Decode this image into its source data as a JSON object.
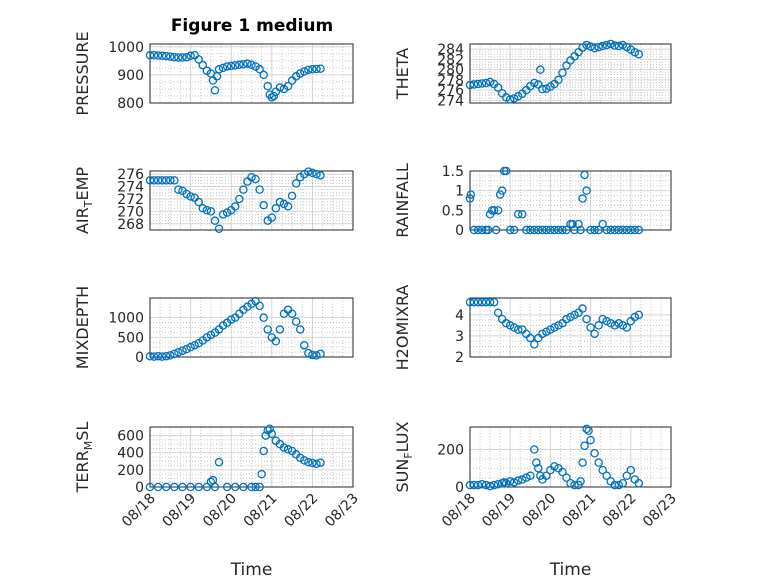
{
  "figure": {
    "title": "Figure 1 medium",
    "xlabel": "Time",
    "xticks": [
      "08/18",
      "08/19",
      "08/20",
      "08/21",
      "08/22",
      "08/23"
    ]
  },
  "colors": {
    "marker": "#0072bd",
    "axis": "#262626",
    "grid": "#d4d4d4"
  },
  "chart_data": [
    {
      "type": "scatter",
      "ylabel": "PRESSURE",
      "yticks": [
        "800",
        "900",
        "1000"
      ],
      "ylim": [
        800,
        1010
      ],
      "xlim": [
        0,
        5
      ],
      "grid": true,
      "x": [
        0.0,
        0.1,
        0.2,
        0.3,
        0.4,
        0.5,
        0.6,
        0.7,
        0.8,
        0.9,
        1.0,
        1.1,
        1.2,
        1.3,
        1.4,
        1.5,
        1.55,
        1.6,
        1.65,
        1.7,
        1.8,
        1.9,
        2.0,
        2.1,
        2.2,
        2.3,
        2.4,
        2.5,
        2.6,
        2.7,
        2.8,
        2.9,
        2.95,
        3.0,
        3.05,
        3.1,
        3.2,
        3.3,
        3.4,
        3.5,
        3.6,
        3.7,
        3.8,
        3.9,
        4.0,
        4.1,
        4.2
      ],
      "y": [
        970,
        970,
        969,
        968,
        967,
        965,
        963,
        962,
        962,
        963,
        968,
        970,
        955,
        935,
        915,
        905,
        880,
        845,
        895,
        920,
        925,
        930,
        932,
        934,
        936,
        938,
        940,
        936,
        930,
        920,
        900,
        860,
        830,
        820,
        825,
        840,
        855,
        850,
        860,
        880,
        895,
        905,
        912,
        918,
        920,
        921,
        922
      ]
    },
    {
      "type": "scatter",
      "ylabel": "THETA",
      "yticks": [
        "274",
        "276",
        "278",
        "280",
        "282",
        "284"
      ],
      "ylim": [
        273.5,
        285
      ],
      "xlim": [
        0,
        5
      ],
      "grid": true,
      "x": [
        0.0,
        0.1,
        0.2,
        0.3,
        0.4,
        0.5,
        0.6,
        0.7,
        0.8,
        0.9,
        1.0,
        1.1,
        1.2,
        1.3,
        1.4,
        1.5,
        1.6,
        1.7,
        1.75,
        1.8,
        1.9,
        2.0,
        2.1,
        2.2,
        2.3,
        2.4,
        2.5,
        2.6,
        2.7,
        2.8,
        2.9,
        3.0,
        3.1,
        3.2,
        3.3,
        3.4,
        3.5,
        3.6,
        3.7,
        3.8,
        3.9,
        4.0,
        4.1,
        4.2
      ],
      "y": [
        277,
        277.1,
        277.2,
        277.3,
        277.4,
        277.6,
        277.2,
        276.5,
        275.4,
        274.6,
        274.2,
        274.4,
        274.8,
        275.3,
        276,
        276.8,
        277.4,
        277.1,
        280,
        276.2,
        276.3,
        276.7,
        277.2,
        278,
        279.4,
        280.8,
        281.8,
        282.6,
        283.4,
        284.3,
        284.8,
        284.5,
        284.2,
        284.4,
        284.6,
        284.8,
        285,
        284.7,
        284.6,
        284.8,
        284.4,
        283.9,
        283.4,
        283
      ]
    },
    {
      "type": "scatter",
      "ylabel": "AIR_TEMP",
      "yticks": [
        "268",
        "270",
        "272",
        "274",
        "276"
      ],
      "ylim": [
        267,
        276.5
      ],
      "xlim": [
        0,
        5
      ],
      "grid": true,
      "x": [
        0.0,
        0.1,
        0.2,
        0.3,
        0.4,
        0.5,
        0.6,
        0.7,
        0.8,
        0.9,
        1.0,
        1.1,
        1.2,
        1.3,
        1.4,
        1.5,
        1.6,
        1.7,
        1.8,
        1.9,
        2.0,
        2.1,
        2.2,
        2.3,
        2.4,
        2.5,
        2.6,
        2.7,
        2.8,
        2.9,
        3.0,
        3.1,
        3.2,
        3.3,
        3.4,
        3.5,
        3.6,
        3.7,
        3.8,
        3.9,
        4.0,
        4.1,
        4.2
      ],
      "y": [
        275,
        275,
        275,
        275,
        275,
        275,
        275,
        273.5,
        273.3,
        272.8,
        272.4,
        272.2,
        271.5,
        270.5,
        270.2,
        270,
        268.5,
        267.2,
        269.5,
        269.8,
        270.2,
        270.8,
        272,
        273.5,
        274.8,
        275.5,
        275.2,
        273.5,
        271,
        268.5,
        269,
        270.5,
        271.5,
        271.2,
        270.8,
        272.5,
        274.5,
        275.5,
        276,
        276.4,
        276.2,
        276,
        275.8
      ]
    },
    {
      "type": "scatter",
      "ylabel": "RAINFALL",
      "yticks": [
        "0",
        "0.5",
        "1",
        "1.5"
      ],
      "ylim": [
        0,
        1.5
      ],
      "xlim": [
        0,
        5
      ],
      "grid": true,
      "x": [
        0.0,
        0.02,
        0.1,
        0.2,
        0.3,
        0.4,
        0.45,
        0.5,
        0.55,
        0.6,
        0.65,
        0.7,
        0.75,
        0.8,
        0.85,
        0.9,
        1.0,
        1.1,
        1.2,
        1.3,
        1.4,
        1.5,
        1.6,
        1.7,
        1.8,
        1.9,
        2.0,
        2.1,
        2.2,
        2.3,
        2.4,
        2.5,
        2.55,
        2.6,
        2.7,
        2.75,
        2.8,
        2.85,
        2.9,
        3.0,
        3.1,
        3.2,
        3.3,
        3.4,
        3.5,
        3.6,
        3.7,
        3.8,
        3.9,
        4.0,
        4.1,
        4.2
      ],
      "y": [
        0.8,
        0.9,
        0,
        0,
        0,
        0,
        0,
        0.4,
        0.5,
        0.5,
        0,
        0.5,
        0.9,
        1.0,
        1.5,
        1.5,
        0,
        0,
        0.4,
        0.4,
        0,
        0,
        0,
        0,
        0,
        0,
        0,
        0,
        0,
        0,
        0,
        0.15,
        0.15,
        0,
        0.15,
        0,
        0.8,
        1.4,
        1.0,
        0,
        0,
        0,
        0.15,
        0,
        0,
        0,
        0,
        0,
        0,
        0,
        0,
        0
      ]
    },
    {
      "type": "scatter",
      "ylabel": "MIXDEPTH",
      "yticks": [
        "0",
        "500",
        "1000"
      ],
      "ylim": [
        0,
        1500
      ],
      "xlim": [
        0,
        5
      ],
      "grid": true,
      "x": [
        0.0,
        0.1,
        0.2,
        0.3,
        0.4,
        0.5,
        0.6,
        0.7,
        0.8,
        0.9,
        1.0,
        1.1,
        1.2,
        1.3,
        1.4,
        1.5,
        1.6,
        1.7,
        1.8,
        1.9,
        2.0,
        2.1,
        2.2,
        2.3,
        2.4,
        2.5,
        2.6,
        2.7,
        2.8,
        2.9,
        3.0,
        3.1,
        3.2,
        3.3,
        3.4,
        3.5,
        3.6,
        3.7,
        3.8,
        3.9,
        4.0,
        4.1,
        4.2
      ],
      "y": [
        20,
        10,
        20,
        10,
        20,
        40,
        80,
        120,
        160,
        200,
        250,
        300,
        350,
        420,
        500,
        560,
        620,
        700,
        800,
        870,
        950,
        1000,
        1100,
        1200,
        1280,
        1350,
        1420,
        1300,
        1000,
        700,
        500,
        400,
        700,
        1100,
        1200,
        1100,
        900,
        700,
        300,
        100,
        50,
        40,
        80
      ]
    },
    {
      "type": "scatter",
      "ylabel": "H2OMIXRA",
      "yticks": [
        "2",
        "3",
        "4"
      ],
      "ylim": [
        2,
        4.8
      ],
      "xlim": [
        0,
        5
      ],
      "grid": true,
      "x": [
        0.0,
        0.1,
        0.2,
        0.3,
        0.4,
        0.5,
        0.6,
        0.7,
        0.8,
        0.9,
        1.0,
        1.1,
        1.2,
        1.3,
        1.4,
        1.5,
        1.6,
        1.7,
        1.8,
        1.9,
        2.0,
        2.1,
        2.2,
        2.3,
        2.4,
        2.5,
        2.6,
        2.7,
        2.8,
        2.9,
        3.0,
        3.1,
        3.2,
        3.3,
        3.4,
        3.5,
        3.6,
        3.7,
        3.8,
        3.9,
        4.0,
        4.1,
        4.2
      ],
      "y": [
        4.6,
        4.6,
        4.6,
        4.6,
        4.6,
        4.6,
        4.6,
        4.1,
        3.8,
        3.6,
        3.5,
        3.4,
        3.3,
        3.3,
        3.1,
        2.9,
        2.6,
        2.9,
        3.1,
        3.2,
        3.3,
        3.4,
        3.5,
        3.6,
        3.8,
        3.9,
        4.0,
        4.1,
        4.3,
        3.8,
        3.4,
        3.1,
        3.5,
        3.8,
        3.7,
        3.6,
        3.5,
        3.6,
        3.5,
        3.4,
        3.7,
        3.9,
        4.0
      ]
    },
    {
      "type": "scatter",
      "ylabel": "TERR_MSL",
      "yticks": [
        "0",
        "200",
        "400",
        "600"
      ],
      "ylim": [
        0,
        700
      ],
      "xlim": [
        0,
        5
      ],
      "grid": true,
      "x": [
        0.0,
        0.2,
        0.4,
        0.6,
        0.8,
        1.0,
        1.2,
        1.4,
        1.5,
        1.55,
        1.6,
        1.7,
        1.9,
        2.1,
        2.3,
        2.5,
        2.6,
        2.7,
        2.75,
        2.8,
        2.85,
        2.9,
        2.95,
        3.0,
        3.1,
        3.2,
        3.3,
        3.4,
        3.5,
        3.6,
        3.7,
        3.8,
        3.9,
        4.0,
        4.1,
        4.2
      ],
      "y": [
        0,
        0,
        0,
        0,
        0,
        0,
        0,
        0,
        60,
        80,
        0,
        290,
        0,
        0,
        0,
        0,
        0,
        0,
        150,
        420,
        600,
        660,
        680,
        620,
        540,
        500,
        460,
        440,
        420,
        380,
        340,
        310,
        290,
        280,
        270,
        285
      ]
    },
    {
      "type": "scatter",
      "ylabel": "SUN_FLUX",
      "yticks": [
        "0",
        "200"
      ],
      "ylim": [
        0,
        320
      ],
      "xlim": [
        0,
        5
      ],
      "grid": true,
      "x": [
        0.0,
        0.1,
        0.2,
        0.3,
        0.4,
        0.5,
        0.6,
        0.7,
        0.8,
        0.85,
        0.9,
        1.0,
        1.1,
        1.2,
        1.3,
        1.4,
        1.5,
        1.6,
        1.65,
        1.7,
        1.75,
        1.8,
        1.9,
        2.0,
        2.1,
        2.2,
        2.3,
        2.4,
        2.5,
        2.6,
        2.7,
        2.75,
        2.8,
        2.85,
        2.9,
        2.95,
        3.0,
        3.1,
        3.2,
        3.3,
        3.4,
        3.5,
        3.6,
        3.7,
        3.8,
        3.9,
        4.0,
        4.1,
        4.2
      ],
      "y": [
        10,
        10,
        10,
        15,
        10,
        5,
        10,
        15,
        20,
        25,
        20,
        30,
        25,
        35,
        40,
        50,
        60,
        200,
        130,
        100,
        60,
        40,
        60,
        90,
        110,
        100,
        80,
        50,
        20,
        10,
        10,
        30,
        130,
        220,
        310,
        300,
        250,
        180,
        130,
        90,
        60,
        30,
        10,
        10,
        20,
        60,
        90,
        40,
        20
      ]
    }
  ]
}
